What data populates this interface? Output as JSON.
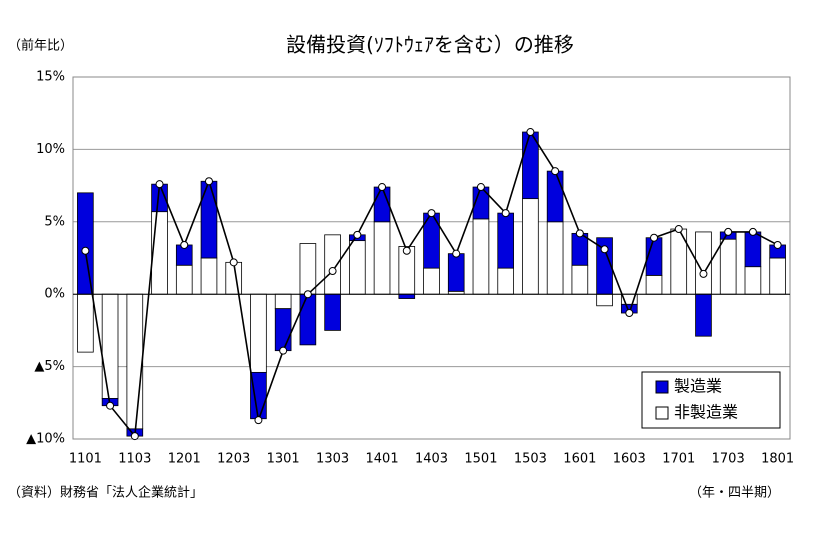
{
  "chart_data": {
    "type": "stacked-bar-line",
    "title": "設備投資(ｿﾌﾄｳｪｱを含む）の推移",
    "y_label": "（前年比）",
    "source": "（資料）財務省「法人企業統計」",
    "x_label": "（年・四半期）",
    "categories": [
      "1101",
      null,
      "1103",
      null,
      "1201",
      null,
      "1203",
      null,
      "1301",
      null,
      "1303",
      null,
      "1401",
      null,
      "1403",
      null,
      "1501",
      null,
      "1503",
      null,
      "1601",
      null,
      "1603",
      null,
      "1701",
      null,
      "1703",
      null,
      "1801"
    ],
    "series": [
      {
        "name": "製造業",
        "color": "#0000dd",
        "values": [
          7.0,
          -0.5,
          -0.5,
          1.9,
          1.4,
          5.3,
          0,
          -3.2,
          -2.9,
          -3.5,
          -2.5,
          0.4,
          2.4,
          -0.3,
          3.8,
          2.6,
          2.2,
          3.8,
          4.6,
          3.5,
          2.2,
          3.9,
          -0.6,
          2.6,
          0,
          -2.9,
          0.5,
          2.4,
          0.9
        ]
      },
      {
        "name": "非製造業",
        "color": "#ffffff",
        "values": [
          -4.0,
          -7.2,
          -9.3,
          5.7,
          2.0,
          2.5,
          2.2,
          -5.4,
          -1.0,
          3.5,
          4.1,
          3.7,
          5.0,
          3.3,
          1.8,
          0.2,
          5.2,
          1.8,
          6.6,
          5.0,
          2.0,
          -0.8,
          -0.7,
          1.3,
          4.5,
          4.3,
          3.8,
          1.9,
          2.5
        ]
      }
    ],
    "total": [
      3.0,
      -7.7,
      -9.8,
      7.6,
      3.4,
      7.8,
      2.2,
      -8.7,
      -3.9,
      0.0,
      1.6,
      4.1,
      7.4,
      3.0,
      5.6,
      2.8,
      7.4,
      5.6,
      11.2,
      8.5,
      4.2,
      3.1,
      -1.3,
      3.9,
      4.5,
      1.4,
      4.3,
      4.3,
      3.4
    ],
    "total_color": "#000000",
    "ylim": [
      -10,
      15
    ],
    "yticks": [
      {
        "value": 15,
        "label": "15%"
      },
      {
        "value": 10,
        "label": "10%"
      },
      {
        "value": 5,
        "label": "5%"
      },
      {
        "value": 0,
        "label": "0%"
      },
      {
        "value": -5,
        "label": "▲5%"
      },
      {
        "value": -10,
        "label": "▲10%"
      }
    ],
    "grid": true,
    "legend": "lower right"
  }
}
